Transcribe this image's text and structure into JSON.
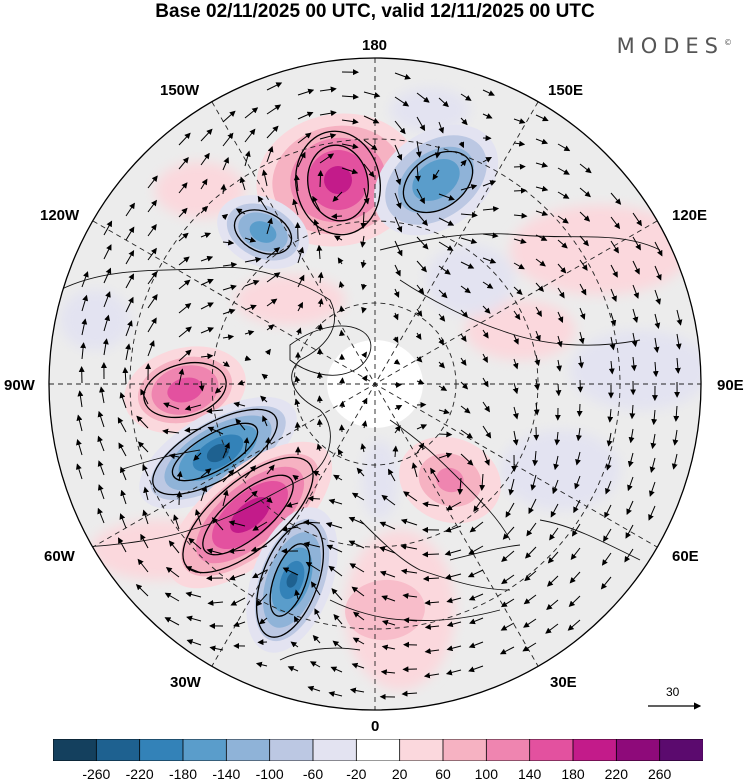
{
  "title": "Base 02/11/2025 00 UTC, valid 12/11/2025 00 UTC",
  "brand": "MODES",
  "brand_mark": "©",
  "lon_labels": {
    "top": "180",
    "bottom": "0",
    "left": "90W",
    "right": "90E",
    "upper_left": "150W",
    "upper_right": "150E",
    "mid_upper_left": "120W",
    "mid_upper_right": "120E",
    "mid_lower_left": "60W",
    "mid_lower_right": "60E",
    "lower_left": "30W",
    "lower_right": "30E"
  },
  "reference_vector": {
    "label": "30"
  },
  "colorbar": {
    "ticks": [
      "-260",
      "-220",
      "-180",
      "-140",
      "-100",
      "-60",
      "-20",
      "20",
      "60",
      "100",
      "140",
      "180",
      "220",
      "260"
    ],
    "colors": [
      "#14405e",
      "#1e6190",
      "#3382b8",
      "#5a9dcb",
      "#8fb3d8",
      "#bcc8e3",
      "#e3e3f1",
      "#ffffff",
      "#fbd8dd",
      "#f6b2c2",
      "#ef85b0",
      "#e3519f",
      "#c31b8a",
      "#8e0a7a",
      "#5b0a6e"
    ]
  },
  "anomaly_centers": [
    {
      "name": "positive-bering",
      "sign": "positive",
      "value": 200
    },
    {
      "name": "negative-east-siberia",
      "sign": "negative",
      "value": -180
    },
    {
      "name": "negative-alaska",
      "sign": "negative",
      "value": -150
    },
    {
      "name": "positive-hudson-bay",
      "sign": "positive",
      "value": 160
    },
    {
      "name": "negative-labrador",
      "sign": "negative",
      "value": -210
    },
    {
      "name": "positive-north-atlantic",
      "sign": "positive",
      "value": 200
    },
    {
      "name": "negative-east-atlantic",
      "sign": "negative",
      "value": -200
    },
    {
      "name": "positive-europe",
      "sign": "positive",
      "value": 90
    },
    {
      "name": "positive-west-siberia",
      "sign": "positive",
      "value": 110
    }
  ]
}
